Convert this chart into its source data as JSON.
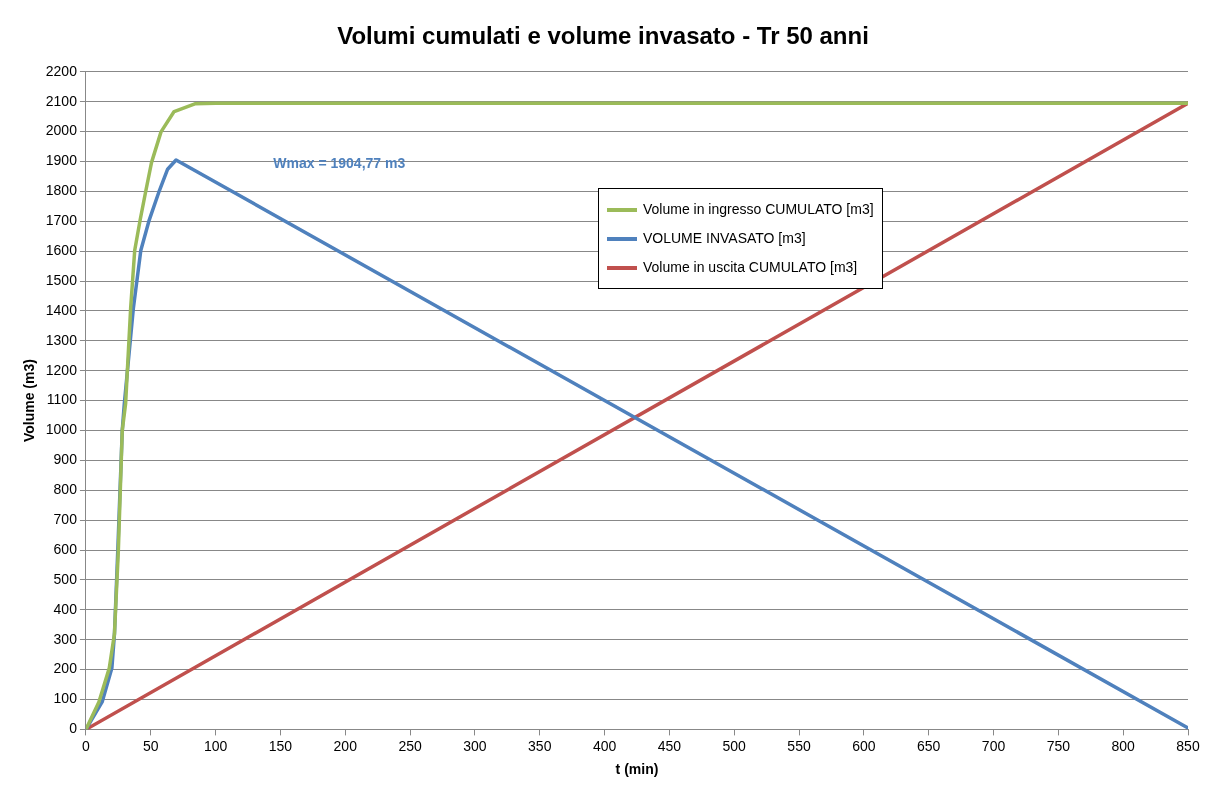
{
  "chart_data": {
    "type": "line",
    "title": "Volumi cumulati e volume invasato - Tr 50 anni",
    "xlabel": "t (min)",
    "ylabel": "Volume (m3)",
    "xlim": [
      0,
      850
    ],
    "xticks": [
      0,
      50,
      100,
      150,
      200,
      250,
      300,
      350,
      400,
      450,
      500,
      550,
      600,
      650,
      700,
      750,
      800,
      850
    ],
    "ylim": [
      0,
      2200
    ],
    "yticks": [
      0,
      100,
      200,
      300,
      400,
      500,
      600,
      700,
      800,
      900,
      1000,
      1100,
      1200,
      1300,
      1400,
      1500,
      1600,
      1700,
      1800,
      1900,
      2000,
      2100,
      2200
    ],
    "grid": "y",
    "legend": "top",
    "marker": "none",
    "line_style": "solid",
    "annotations": [
      "Wmax = 1904,77 m3"
    ],
    "series": [
      {
        "name": "Volume in ingresso CUMULATO [m3]",
        "color": "#9bbb59",
        "x": [
          0,
          10,
          18,
          22,
          25,
          28,
          30.6,
          34.5,
          37.6,
          41.8,
          46.2,
          50.6,
          57.9,
          68,
          84,
          100,
          850
        ],
        "values": [
          0,
          92,
          205,
          320,
          600,
          1000,
          1090,
          1410,
          1602,
          1704,
          1802,
          1897,
          1999,
          2067,
          2093,
          2095,
          2095
        ]
      },
      {
        "name": "VOLUME INVASATO [m3]",
        "color": "#4f81bd",
        "x": [
          0,
          12.5,
          20,
          22,
          24.6,
          28,
          29.6,
          36.6,
          42.3,
          48.8,
          56.6,
          63,
          69.5,
          850
        ],
        "values": [
          0,
          92,
          205,
          320,
          603,
          1000,
          1090,
          1410,
          1602,
          1704,
          1802,
          1874,
          1905,
          5
        ]
      },
      {
        "name": "Volume in uscita CUMULATO [m3]",
        "color": "#c0504d",
        "x": [
          0,
          850
        ],
        "values": [
          0,
          2095
        ]
      }
    ]
  }
}
